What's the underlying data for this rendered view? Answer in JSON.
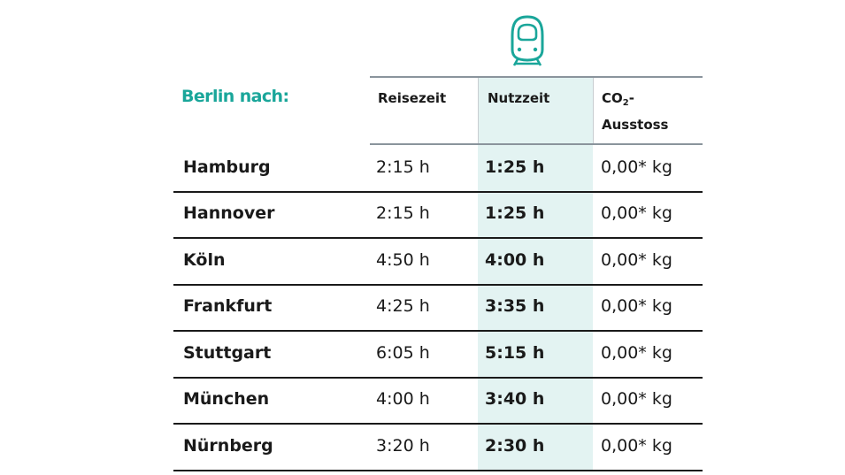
{
  "header": {
    "title": "Berlin nach:",
    "columns": {
      "reisezeit": "Reisezeit",
      "nutzzeit": "Nutzzeit",
      "co2_prefix": "CO",
      "co2_sub": "2",
      "co2_suffix": "-",
      "co2_line2": "Ausstoss"
    },
    "icon": "train-front-icon"
  },
  "colors": {
    "accent": "#1aa69a",
    "highlight": "#e3f3f2",
    "rule": "#1a1a1a",
    "header_rule": "#8a949c"
  },
  "rows": [
    {
      "city": "Hamburg",
      "reisezeit": "2:15 h",
      "nutzzeit": "1:25 h",
      "co2": "0,00* kg"
    },
    {
      "city": "Hannover",
      "reisezeit": "2:15 h",
      "nutzzeit": "1:25 h",
      "co2": "0,00* kg"
    },
    {
      "city": "Köln",
      "reisezeit": "4:50 h",
      "nutzzeit": "4:00 h",
      "co2": "0,00* kg"
    },
    {
      "city": "Frankfurt",
      "reisezeit": "4:25 h",
      "nutzzeit": "3:35 h",
      "co2": "0,00* kg"
    },
    {
      "city": "Stuttgart",
      "reisezeit": "6:05 h",
      "nutzzeit": "5:15 h",
      "co2": "0,00* kg"
    },
    {
      "city": "München",
      "reisezeit": "4:00 h",
      "nutzzeit": "3:40 h",
      "co2": "0,00* kg"
    },
    {
      "city": "Nürnberg",
      "reisezeit": "3:20 h",
      "nutzzeit": "2:30 h",
      "co2": "0,00* kg"
    }
  ]
}
